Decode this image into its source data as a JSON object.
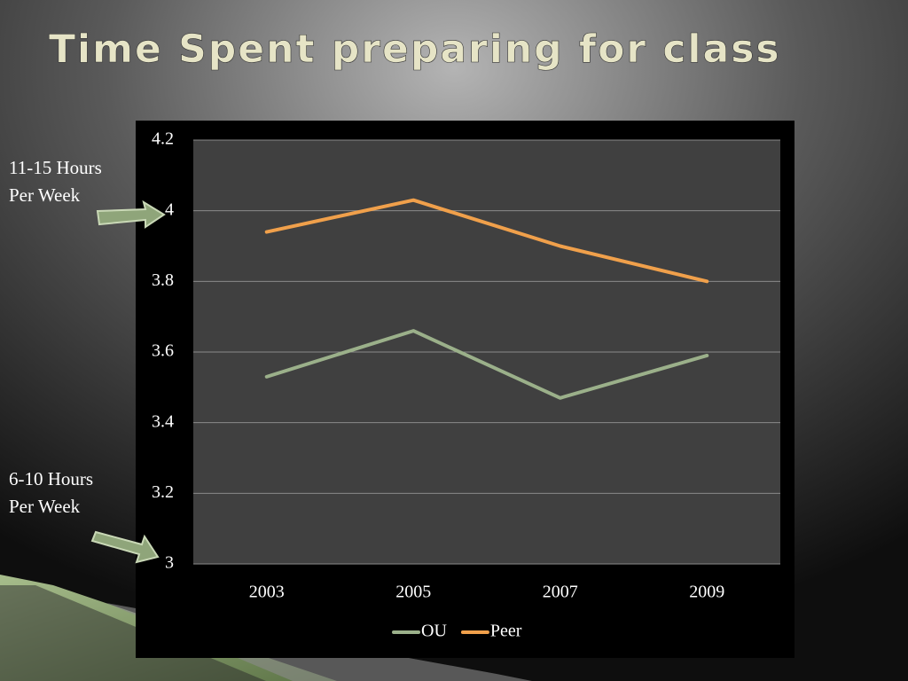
{
  "title": "Time Spent preparing for class",
  "annotations": [
    [
      "11-15 Hours",
      "Per Week"
    ],
    [
      "6-10 Hours",
      "Per Week"
    ]
  ],
  "chart_data": {
    "type": "line",
    "categories": [
      "2003",
      "2005",
      "2007",
      "2009"
    ],
    "series": [
      {
        "name": "OU",
        "color": "#9bb08a",
        "values": [
          3.53,
          3.66,
          3.47,
          3.59
        ]
      },
      {
        "name": "Peer",
        "color": "#f0a04b",
        "values": [
          3.94,
          4.03,
          3.9,
          3.8
        ]
      }
    ],
    "ylim": [
      3,
      4.2
    ],
    "yticks": [
      3,
      3.2,
      3.4,
      3.6,
      3.8,
      4,
      4.2
    ],
    "grid": true,
    "legend": "bottom"
  }
}
